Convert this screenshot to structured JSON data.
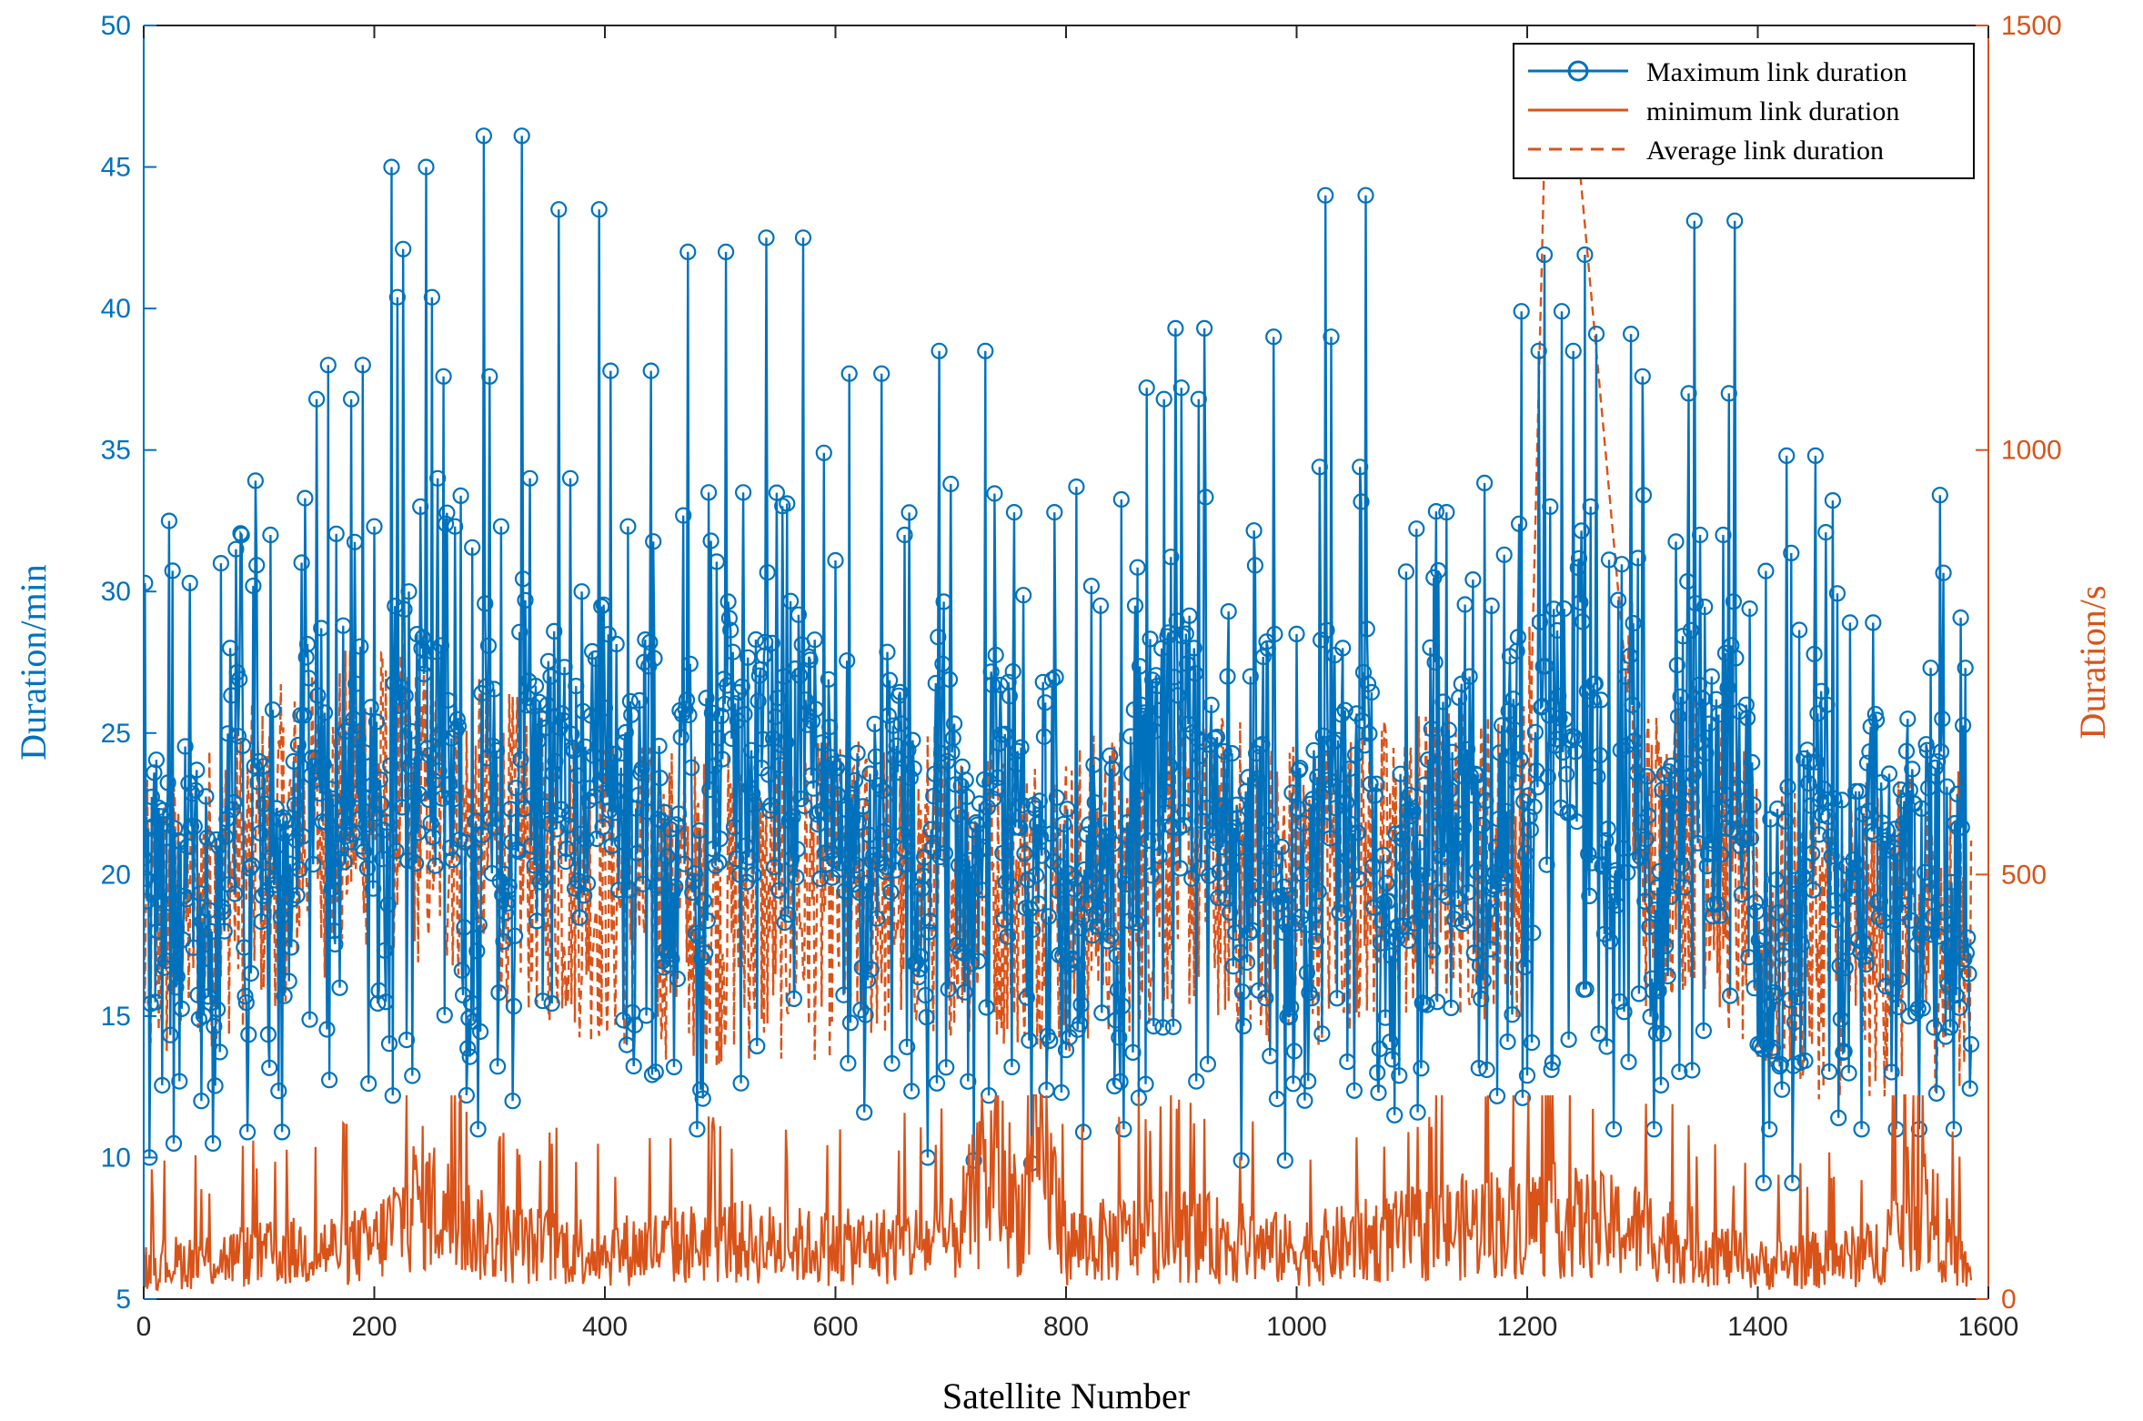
{
  "chart_data": {
    "type": "line",
    "title": "",
    "xlabel": "Satellite Number",
    "ylabel_left": "Duration/min",
    "ylabel_right": "Duration/s",
    "xlim": [
      0,
      1600
    ],
    "ylim_left": [
      5,
      50
    ],
    "ylim_right": [
      0,
      1500
    ],
    "x_ticks": [
      0,
      200,
      400,
      600,
      800,
      1000,
      1200,
      1400,
      1600
    ],
    "y_left_ticks": [
      5,
      10,
      15,
      20,
      25,
      30,
      35,
      40,
      45,
      50
    ],
    "y_right_ticks": [
      0,
      500,
      1000,
      1500
    ],
    "grid": false,
    "legend_position": "top-right",
    "colors": {
      "max": "#0072BD",
      "min": "#D95319",
      "avg": "#D95319"
    },
    "series": [
      {
        "name": "Maximum link duration",
        "axis": "left",
        "style": "solid line with circle markers",
        "color": "#0072BD",
        "anchors_x": [
          1,
          5,
          8,
          12,
          20,
          26,
          30,
          34,
          40,
          44,
          50,
          55,
          60,
          65,
          70,
          75,
          80,
          85,
          90,
          95,
          100,
          110,
          120,
          130,
          140,
          150,
          160,
          170,
          180,
          190,
          200,
          210,
          215,
          220,
          225,
          230,
          240,
          245,
          250,
          255,
          260,
          270,
          280,
          290,
          295,
          300,
          310,
          320,
          328,
          335,
          345,
          360,
          370,
          380,
          395,
          405,
          420,
          440,
          460,
          472,
          480,
          490,
          505,
          520,
          540,
          555,
          572,
          590,
          600,
          612,
          625,
          640,
          660,
          680,
          690,
          700,
          720,
          730,
          750,
          755,
          770,
          780,
          790,
          800,
          815,
          830,
          850,
          860,
          870,
          885,
          895,
          900,
          915,
          920,
          940,
          952,
          960,
          980,
          990,
          1000,
          1010,
          1020,
          1025,
          1030,
          1040,
          1055,
          1060,
          1070,
          1085,
          1095,
          1105,
          1120,
          1130,
          1150,
          1165,
          1180,
          1195,
          1200,
          1210,
          1215,
          1220,
          1230,
          1240,
          1250,
          1255,
          1260,
          1275,
          1285,
          1290,
          1300,
          1310,
          1330,
          1340,
          1345,
          1350,
          1360,
          1370,
          1375,
          1380,
          1390,
          1400,
          1405,
          1410,
          1420,
          1425,
          1430,
          1440,
          1450,
          1460,
          1470,
          1480,
          1490,
          1500,
          1510,
          1520,
          1530,
          1540,
          1550,
          1560,
          1570,
          1580,
          1585
        ],
        "anchors_y": [
          30.3,
          10.0,
          21.7,
          18.0,
          21.3,
          10.5,
          21.2,
          17.7,
          30.3,
          21.7,
          12.0,
          21.3,
          10.5,
          21.0,
          18.0,
          28.0,
          31.5,
          32.0,
          10.9,
          30.2,
          24.0,
          32.0,
          10.9,
          24.0,
          33.3,
          36.8,
          38.0,
          16.0,
          36.8,
          38.0,
          32.3,
          15.5,
          45.0,
          40.4,
          42.1,
          30.0,
          33.0,
          45.0,
          40.4,
          34.0,
          37.6,
          32.3,
          12.2,
          11.0,
          46.1,
          37.6,
          32.3,
          12.0,
          46.1,
          34.0,
          25.5,
          43.5,
          34.0,
          30.0,
          43.5,
          37.8,
          32.3,
          37.8,
          13.2,
          42.0,
          11.0,
          33.5,
          42.0,
          33.5,
          42.5,
          27.0,
          42.5,
          34.9,
          31.1,
          37.7,
          11.6,
          37.7,
          32.0,
          10.0,
          38.5,
          33.8,
          9.9,
          38.5,
          26.8,
          32.8,
          9.8,
          26.8,
          32.8,
          13.8,
          10.9,
          29.5,
          11.0,
          29.5,
          37.2,
          36.8,
          39.3,
          37.2,
          36.8,
          39.3,
          27.0,
          9.9,
          27.0,
          39.0,
          9.9,
          28.5,
          12.7,
          34.4,
          44.0,
          39.0,
          28.0,
          34.4,
          44.0,
          13.0,
          11.5,
          30.7,
          11.6,
          27.5,
          32.8,
          27.0,
          13.1,
          31.3,
          39.9,
          12.9,
          38.5,
          41.9,
          33.0,
          39.9,
          38.5,
          41.9,
          33.0,
          39.1,
          11.0,
          27.0,
          39.1,
          37.6,
          11.0,
          27.4,
          37.0,
          43.1,
          32.0,
          27.0,
          32.0,
          37.0,
          43.1,
          26.0,
          14.0,
          9.1,
          11.0,
          13.3,
          34.8,
          9.1,
          24.1,
          34.8,
          26.0,
          11.4,
          28.9,
          11.0,
          28.9,
          21.2,
          11.0,
          25.5,
          11.0,
          27.3,
          25.5,
          11.0,
          27.3,
          14.0
        ]
      },
      {
        "name": "minimum link duration",
        "axis": "right",
        "style": "solid line",
        "color": "#D95319",
        "anchors_x": [
          0,
          100,
          200,
          240,
          300,
          400,
          500,
          600,
          700,
          740,
          760,
          780,
          800,
          900,
          1000,
          1100,
          1200,
          1300,
          1400,
          1500,
          1540,
          1585
        ],
        "anchors_y": [
          50,
          65,
          80,
          150,
          85,
          70,
          85,
          75,
          85,
          200,
          120,
          220,
          80,
          95,
          70,
          95,
          120,
          100,
          50,
          65,
          150,
          30
        ]
      },
      {
        "name": "Average link duration",
        "axis": "right",
        "style": "dashed line",
        "color": "#D95319",
        "anchors_x": [
          0,
          100,
          200,
          300,
          400,
          500,
          600,
          700,
          800,
          900,
          1000,
          1100,
          1200,
          1215,
          1245,
          1300,
          1350,
          1400,
          1500,
          1585
        ],
        "anchors_y": [
          420,
          520,
          600,
          540,
          480,
          460,
          470,
          500,
          470,
          520,
          480,
          510,
          520,
          1350,
          1340,
          520,
          560,
          430,
          420,
          440
        ]
      }
    ],
    "legend": [
      "Maximum link duration",
      "minimum link duration",
      "Average link duration"
    ]
  }
}
